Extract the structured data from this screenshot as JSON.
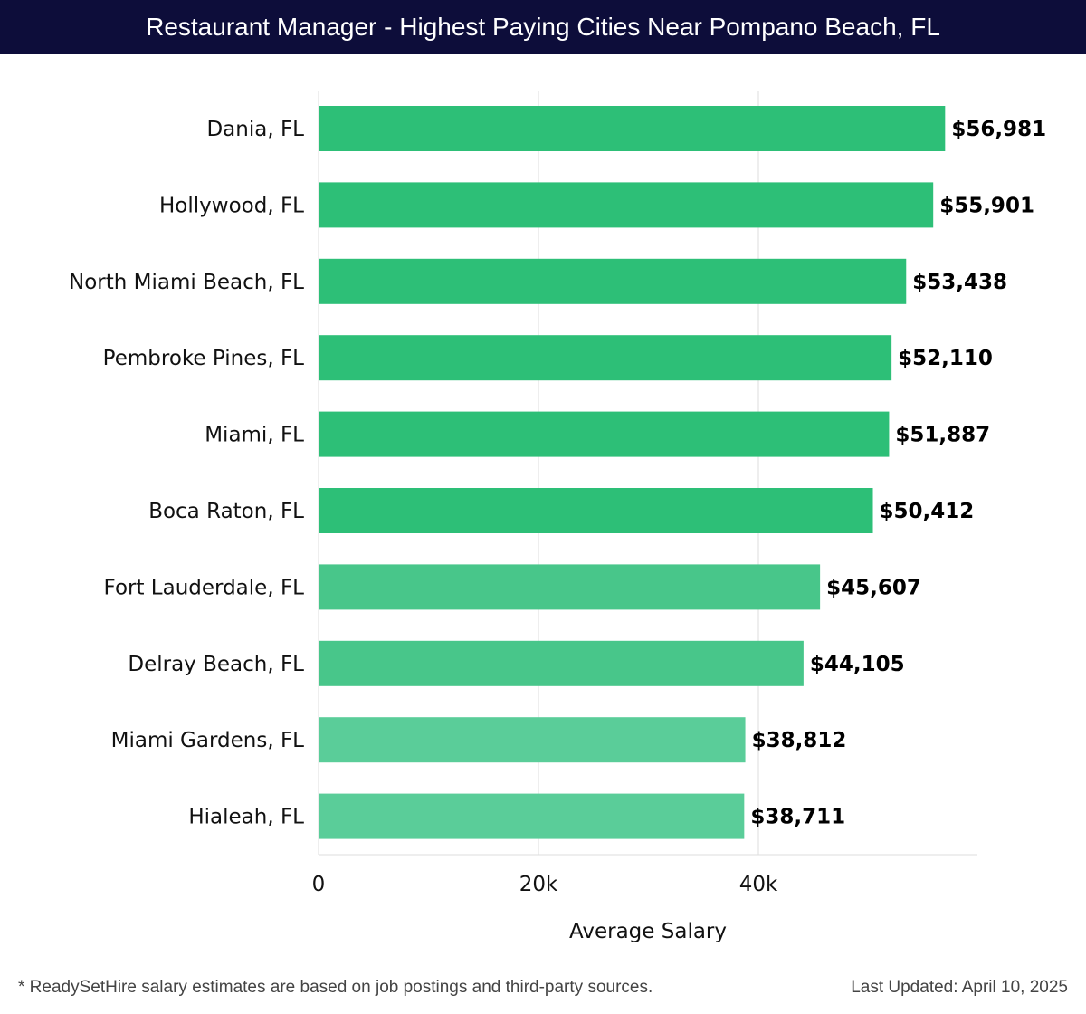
{
  "header": {
    "title": "Restaurant Manager - Highest Paying Cities Near Pompano Beach, FL"
  },
  "footer": {
    "note": "* ReadySetHire salary estimates are based on job postings and third-party sources.",
    "updated": "Last Updated: April 10, 2025"
  },
  "colors": {
    "title_bg": "#0d0d3a",
    "bar_high": "#2dbf77",
    "bar_mid": "#48c68a",
    "bar_low": "#5acd99",
    "grid": "#dddddd"
  },
  "chart_data": {
    "type": "bar",
    "orientation": "horizontal",
    "title": "Restaurant Manager - Highest Paying Cities Near Pompano Beach, FL",
    "xlabel": "Average Salary",
    "ylabel": "",
    "categories": [
      "Dania, FL",
      "Hollywood, FL",
      "North Miami Beach, FL",
      "Pembroke Pines, FL",
      "Miami, FL",
      "Boca Raton, FL",
      "Fort Lauderdale, FL",
      "Delray Beach, FL",
      "Miami Gardens, FL",
      "Hialeah, FL"
    ],
    "values": [
      56981,
      55901,
      53438,
      52110,
      51887,
      50412,
      45607,
      44105,
      38812,
      38711
    ],
    "value_labels": [
      "$56,981",
      "$55,901",
      "$53,438",
      "$52,110",
      "$51,887",
      "$50,412",
      "$45,607",
      "$44,105",
      "$38,812",
      "$38,711"
    ],
    "xlim": [
      0,
      60000
    ],
    "xticks": [
      0,
      20000,
      40000
    ],
    "xtick_labels": [
      "0",
      "20k",
      "40k"
    ],
    "grid": true,
    "legend": "none"
  }
}
